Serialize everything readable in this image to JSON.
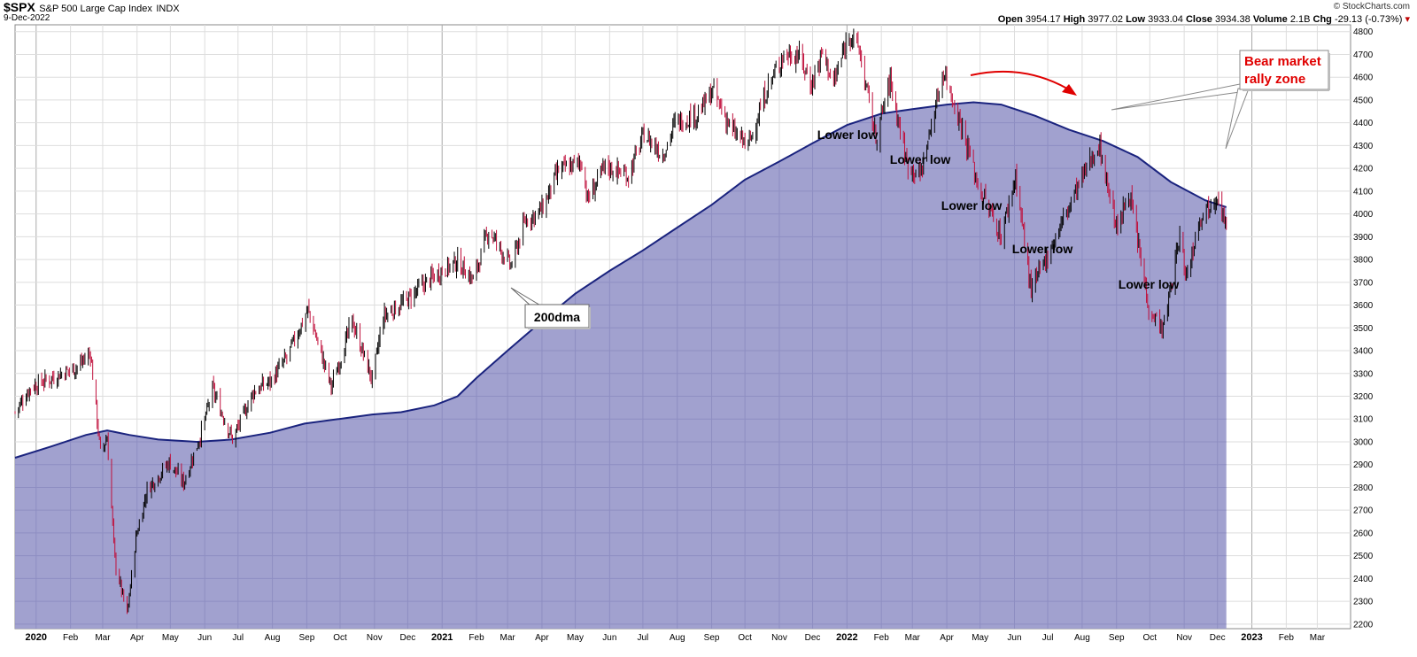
{
  "header": {
    "ticker": "$SPX",
    "name": "S&P 500 Large Cap Index",
    "exchange": "INDX",
    "date": "9-Dec-2022",
    "brand": "© StockCharts.com",
    "open_label": "Open",
    "open": "3954.17",
    "high_label": "High",
    "high": "3977.02",
    "low_label": "Low",
    "low": "3933.04",
    "close_label": "Close",
    "close": "3934.38",
    "volume_label": "Volume",
    "volume": "2.1B",
    "chg_label": "Chg",
    "chg": "-29.13 (-0.73%)"
  },
  "chart_data": {
    "type": "line",
    "yaxis": {
      "range": [
        2180,
        4830
      ],
      "ticks": [
        2200,
        2300,
        2400,
        2500,
        2600,
        2700,
        2800,
        2900,
        3000,
        3100,
        3200,
        3300,
        3400,
        3500,
        3600,
        3700,
        3800,
        3900,
        4000,
        4100,
        4200,
        4300,
        4400,
        4500,
        4600,
        4700,
        4800
      ],
      "position": "right"
    },
    "xaxis": {
      "labels": [
        "2020",
        "Feb",
        "Mar",
        "Apr",
        "May",
        "Jun",
        "Jul",
        "Aug",
        "Sep",
        "Oct",
        "Nov",
        "Dec",
        "2021",
        "Feb",
        "Mar",
        "Apr",
        "May",
        "Jun",
        "Jul",
        "Aug",
        "Sep",
        "Oct",
        "Nov",
        "Dec",
        "2022",
        "Feb",
        "Mar",
        "Apr",
        "May",
        "Jun",
        "Jul",
        "Aug",
        "Sep",
        "Oct",
        "Nov",
        "Dec",
        "2023",
        "Feb",
        "Mar"
      ],
      "range": [
        "2019-12-13",
        "2023-03-31"
      ]
    },
    "grid": true,
    "series": [
      {
        "name": "$SPX",
        "style": "ohlc-bars",
        "points": [
          [
            "2019-12-13",
            3130
          ],
          [
            "2019-12-27",
            3240
          ],
          [
            "2020-01-10",
            3270
          ],
          [
            "2020-01-24",
            3300
          ],
          [
            "2020-02-07",
            3330
          ],
          [
            "2020-02-19",
            3390
          ],
          [
            "2020-02-28",
            2950
          ],
          [
            "2020-03-05",
            3020
          ],
          [
            "2020-03-12",
            2480
          ],
          [
            "2020-03-16",
            2390
          ],
          [
            "2020-03-23",
            2240
          ],
          [
            "2020-03-31",
            2580
          ],
          [
            "2020-04-10",
            2790
          ],
          [
            "2020-04-30",
            2910
          ],
          [
            "2020-05-13",
            2820
          ],
          [
            "2020-05-29",
            3040
          ],
          [
            "2020-06-08",
            3230
          ],
          [
            "2020-06-26",
            3010
          ],
          [
            "2020-07-15",
            3220
          ],
          [
            "2020-07-31",
            3270
          ],
          [
            "2020-08-14",
            3370
          ],
          [
            "2020-09-02",
            3580
          ],
          [
            "2020-09-23",
            3240
          ],
          [
            "2020-10-12",
            3530
          ],
          [
            "2020-10-30",
            3270
          ],
          [
            "2020-11-09",
            3550
          ],
          [
            "2020-11-30",
            3620
          ],
          [
            "2020-12-15",
            3690
          ],
          [
            "2020-12-31",
            3750
          ],
          [
            "2021-01-15",
            3790
          ],
          [
            "2021-01-29",
            3710
          ],
          [
            "2021-02-12",
            3930
          ],
          [
            "2021-03-04",
            3770
          ],
          [
            "2021-03-17",
            3970
          ],
          [
            "2021-04-01",
            4020
          ],
          [
            "2021-04-16",
            4190
          ],
          [
            "2021-05-07",
            4230
          ],
          [
            "2021-05-12",
            4060
          ],
          [
            "2021-05-28",
            4210
          ],
          [
            "2021-06-18",
            4170
          ],
          [
            "2021-07-02",
            4350
          ],
          [
            "2021-07-19",
            4260
          ],
          [
            "2021-07-30",
            4400
          ],
          [
            "2021-08-20",
            4440
          ],
          [
            "2021-09-02",
            4540
          ],
          [
            "2021-09-20",
            4360
          ],
          [
            "2021-10-04",
            4300
          ],
          [
            "2021-10-21",
            4550
          ],
          [
            "2021-11-05",
            4700
          ],
          [
            "2021-11-18",
            4700
          ],
          [
            "2021-11-30",
            4570
          ],
          [
            "2021-12-10",
            4710
          ],
          [
            "2021-12-20",
            4570
          ],
          [
            "2022-01-03",
            4800
          ],
          [
            "2022-01-12",
            4720
          ],
          [
            "2022-01-27",
            4330
          ],
          [
            "2022-02-09",
            4590
          ],
          [
            "2022-02-24",
            4220
          ],
          [
            "2022-03-08",
            4170
          ],
          [
            "2022-03-29",
            4630
          ],
          [
            "2022-04-14",
            4390
          ],
          [
            "2022-04-29",
            4130
          ],
          [
            "2022-05-20",
            3900
          ],
          [
            "2022-06-02",
            4170
          ],
          [
            "2022-06-16",
            3660
          ],
          [
            "2022-07-08",
            3900
          ],
          [
            "2022-07-29",
            4130
          ],
          [
            "2022-08-16",
            4310
          ],
          [
            "2022-09-02",
            3920
          ],
          [
            "2022-09-12",
            4110
          ],
          [
            "2022-09-30",
            3590
          ],
          [
            "2022-10-13",
            3490
          ],
          [
            "2022-10-28",
            3900
          ],
          [
            "2022-11-03",
            3720
          ],
          [
            "2022-11-15",
            3990
          ],
          [
            "2022-11-30",
            4080
          ],
          [
            "2022-12-01",
            4100
          ],
          [
            "2022-12-09",
            3934
          ]
        ]
      },
      {
        "name": "200dma",
        "style": "area",
        "points": [
          [
            "2019-12-13",
            2930
          ],
          [
            "2020-01-15",
            2980
          ],
          [
            "2020-02-15",
            3030
          ],
          [
            "2020-03-05",
            3050
          ],
          [
            "2020-03-25",
            3030
          ],
          [
            "2020-04-20",
            3010
          ],
          [
            "2020-05-25",
            3000
          ],
          [
            "2020-06-25",
            3010
          ],
          [
            "2020-07-30",
            3040
          ],
          [
            "2020-08-30",
            3080
          ],
          [
            "2020-09-30",
            3100
          ],
          [
            "2020-10-30",
            3120
          ],
          [
            "2020-11-25",
            3130
          ],
          [
            "2020-12-25",
            3160
          ],
          [
            "2021-01-15",
            3200
          ],
          [
            "2021-02-01",
            3280
          ],
          [
            "2021-03-01",
            3400
          ],
          [
            "2021-04-01",
            3530
          ],
          [
            "2021-05-01",
            3650
          ],
          [
            "2021-06-01",
            3750
          ],
          [
            "2021-07-01",
            3840
          ],
          [
            "2021-08-01",
            3940
          ],
          [
            "2021-09-01",
            4040
          ],
          [
            "2021-10-01",
            4150
          ],
          [
            "2021-11-01",
            4230
          ],
          [
            "2021-12-01",
            4310
          ],
          [
            "2022-01-01",
            4390
          ],
          [
            "2022-02-01",
            4440
          ],
          [
            "2022-03-01",
            4460
          ],
          [
            "2022-04-01",
            4480
          ],
          [
            "2022-04-25",
            4490
          ],
          [
            "2022-05-20",
            4480
          ],
          [
            "2022-06-20",
            4430
          ],
          [
            "2022-07-20",
            4370
          ],
          [
            "2022-08-20",
            4320
          ],
          [
            "2022-09-20",
            4250
          ],
          [
            "2022-10-20",
            4140
          ],
          [
            "2022-11-20",
            4060
          ],
          [
            "2022-12-09",
            4030
          ]
        ]
      }
    ],
    "annotations": [
      {
        "text": "Lower low",
        "date": "2022-01-31"
      },
      {
        "text": "Lower low",
        "date": "2022-03-08"
      },
      {
        "text": "Lower low",
        "date": "2022-05-20"
      },
      {
        "text": "Lower low",
        "date": "2022-06-16"
      },
      {
        "text": "Lower low",
        "date": "2022-10-13"
      },
      {
        "text": "200dma",
        "target_date": "2021-03-06"
      },
      {
        "text": "Bear market",
        "text2": "rally zone",
        "color": "#e00000"
      }
    ],
    "colors": {
      "area_fill": "#9c9ccc",
      "ma_line": "#1a237e",
      "bar_up": "#000000",
      "bar_down": "#c0103c",
      "arrow": "#e00000"
    }
  }
}
